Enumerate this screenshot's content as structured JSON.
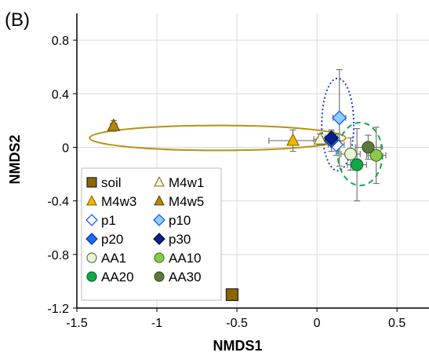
{
  "chart_data": {
    "type": "scatter",
    "panel_label": "(B)",
    "xlabel": "NMDS1",
    "ylabel": "NMDS2",
    "xlim": [
      -1.5,
      0.7
    ],
    "ylim": [
      -1.2,
      1.0
    ],
    "x_ticks": [
      -1.5,
      -1,
      -0.5,
      0,
      0.5
    ],
    "x_tick_labels": [
      "-1.5",
      "-1",
      "-0.5",
      "0",
      "0.5"
    ],
    "y_ticks": [
      -1.2,
      -0.8,
      -0.4,
      0,
      0.4,
      0.8
    ],
    "y_tick_labels": [
      "-1.2",
      "-0.8",
      "-0.4",
      "0",
      "0.4",
      "0.8"
    ],
    "grid": true,
    "legend_position": "bottom-left",
    "series": [
      {
        "name": "soil",
        "marker": "square",
        "fill": "#8B6508",
        "stroke": "#222222",
        "points": [
          {
            "x": -0.53,
            "y": -1.1
          }
        ],
        "xerr": 0,
        "yerr": 0
      },
      {
        "name": "M4w1",
        "marker": "triangle",
        "fill": "#FFF7D6",
        "stroke": "#8B7A30",
        "points": [
          {
            "x": 0.02,
            "y": 0.06
          }
        ],
        "xerr": 0.04,
        "yerr": 0.04
      },
      {
        "name": "M4w3",
        "marker": "triangle",
        "fill": "#F5B800",
        "stroke": "#8B6A00",
        "points": [
          {
            "x": -0.15,
            "y": 0.05
          }
        ],
        "xerr": 0.15,
        "yerr": 0.08
      },
      {
        "name": "M4w5",
        "marker": "triangle",
        "fill": "#B8860B",
        "stroke": "#6B4E00",
        "points": [
          {
            "x": -1.27,
            "y": 0.16
          }
        ],
        "xerr": 0.02,
        "yerr": 0.04
      },
      {
        "name": "p1",
        "marker": "diamond",
        "fill": "#ffffff",
        "stroke": "#1E5BFF",
        "points": [
          {
            "x": 0.12,
            "y": 0.02
          }
        ],
        "xerr": 0.05,
        "yerr": 0.08
      },
      {
        "name": "p10",
        "marker": "diamond",
        "fill": "#8FD0FF",
        "stroke": "#1E5BFF",
        "points": [
          {
            "x": 0.14,
            "y": 0.22
          }
        ],
        "xerr": 0.04,
        "yerr": 0.36
      },
      {
        "name": "p20",
        "marker": "diamond",
        "fill": "#1E6BFF",
        "stroke": "#0A3A99",
        "points": [
          {
            "x": 0.09,
            "y": 0.05
          }
        ],
        "xerr": 0.05,
        "yerr": 0.08
      },
      {
        "name": "p30",
        "marker": "diamond",
        "fill": "#0A1F8F",
        "stroke": "#00104F",
        "points": [
          {
            "x": 0.09,
            "y": 0.07
          }
        ],
        "xerr": 0.04,
        "yerr": 0.05
      },
      {
        "name": "AA1",
        "marker": "circle",
        "fill": "#E8F5D8",
        "stroke": "#5A7A3A",
        "points": [
          {
            "x": 0.21,
            "y": -0.05
          }
        ],
        "xerr": 0.06,
        "yerr": 0.12
      },
      {
        "name": "AA10",
        "marker": "circle",
        "fill": "#8CC84B",
        "stroke": "#4E7A20",
        "points": [
          {
            "x": 0.37,
            "y": -0.06
          }
        ],
        "xerr": 0.06,
        "yerr": 0.21
      },
      {
        "name": "AA20",
        "marker": "circle",
        "fill": "#12A84A",
        "stroke": "#0A6B2E",
        "points": [
          {
            "x": 0.25,
            "y": -0.13
          }
        ],
        "xerr": 0.06,
        "yerr": 0.27
      },
      {
        "name": "AA30",
        "marker": "circle",
        "fill": "#5A7A3A",
        "stroke": "#3A5220",
        "points": [
          {
            "x": 0.32,
            "y": 0.0
          }
        ],
        "xerr": 0.08,
        "yerr": 0.09
      }
    ],
    "ellipses": [
      {
        "group": "M4w",
        "cx": -0.62,
        "cy": 0.07,
        "rx": 0.8,
        "ry": 0.093,
        "color": "#B8920F",
        "dash": "solid"
      },
      {
        "group": "p",
        "cx": 0.13,
        "cy": 0.17,
        "rx": 0.1,
        "ry": 0.345,
        "color": "#1E3ACF",
        "dash": "dotted"
      },
      {
        "group": "AA",
        "cx": 0.27,
        "cy": -0.05,
        "rx": 0.14,
        "ry": 0.235,
        "color": "#1AA84A",
        "dash": "dashed"
      }
    ]
  }
}
